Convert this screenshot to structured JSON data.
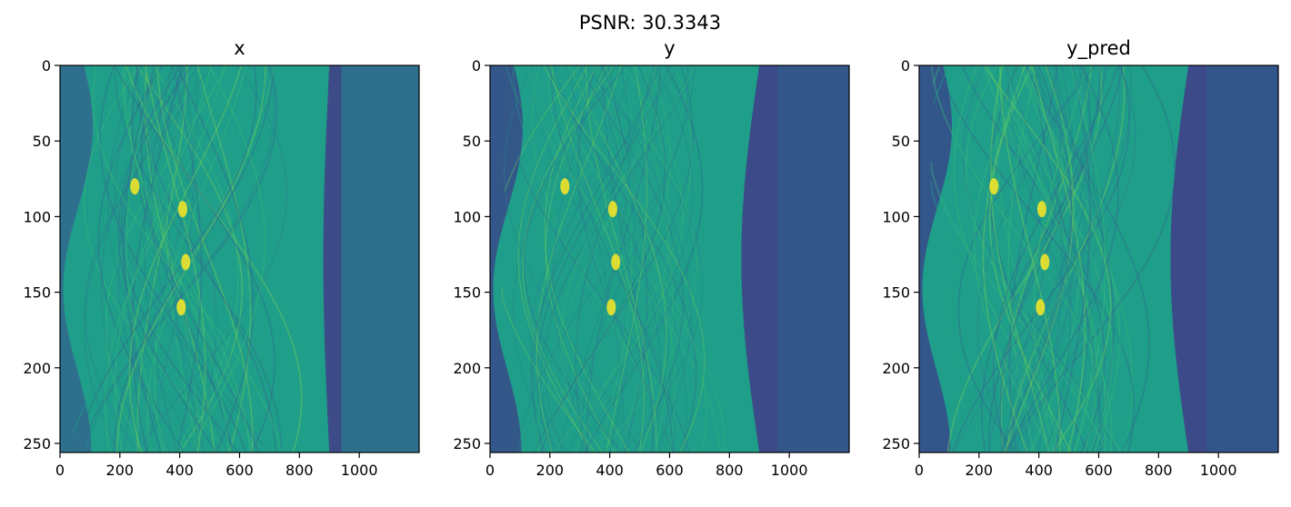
{
  "figure": {
    "suptitle": "PSNR: 30.3343"
  },
  "colors": {
    "pad_x": "#2f6f8e",
    "pad_y": "#345789",
    "pad_ypred": "#33568a",
    "viridis": [
      "#440154",
      "#482878",
      "#3e4a89",
      "#31688e",
      "#26828e",
      "#1f9e89",
      "#35b779",
      "#6ece58",
      "#b5de2b",
      "#fde725"
    ]
  },
  "chart_data": [
    {
      "type": "heatmap",
      "title": "x",
      "xlim": [
        0,
        1200
      ],
      "ylim": [
        256,
        0
      ],
      "xticks": [
        0,
        200,
        400,
        600,
        800,
        1000
      ],
      "yticks": [
        0,
        50,
        100,
        150,
        200,
        250
      ],
      "data_extent_x": [
        0,
        940
      ],
      "colormap": "viridis"
    },
    {
      "type": "heatmap",
      "title": "y",
      "xlim": [
        0,
        1200
      ],
      "ylim": [
        256,
        0
      ],
      "xticks": [
        0,
        200,
        400,
        600,
        800,
        1000
      ],
      "yticks": [
        0,
        50,
        100,
        150,
        200,
        250
      ],
      "data_extent_x": [
        0,
        960
      ],
      "colormap": "viridis"
    },
    {
      "type": "heatmap",
      "title": "y_pred",
      "xlim": [
        0,
        1200
      ],
      "ylim": [
        256,
        0
      ],
      "xticks": [
        0,
        200,
        400,
        600,
        800,
        1000
      ],
      "yticks": [
        0,
        50,
        100,
        150,
        200,
        250
      ],
      "data_extent_x": [
        0,
        960
      ],
      "colormap": "viridis"
    }
  ]
}
